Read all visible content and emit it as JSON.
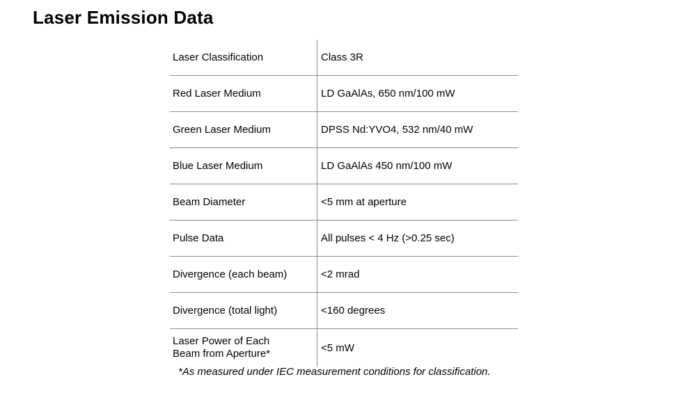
{
  "title": "Laser Emission Data",
  "rows": [
    {
      "label": "Laser Classification",
      "value": "Class 3R"
    },
    {
      "label": "Red Laser Medium",
      "value": "LD GaAlAs, 650 nm/100 mW"
    },
    {
      "label": "Green Laser Medium",
      "value": "DPSS Nd:YVO4, 532 nm/40 mW"
    },
    {
      "label": "Blue Laser Medium",
      "value": "LD GaAlAs 450 nm/100 mW"
    },
    {
      "label": "Beam Diameter",
      "value": "<5 mm at aperture"
    },
    {
      "label": "Pulse Data",
      "value": "All pulses < 4 Hz (>0.25 sec)"
    },
    {
      "label": "Divergence (each beam)",
      "value": "<2 mrad"
    },
    {
      "label": "Divergence (total light)",
      "value": "<160 degrees"
    },
    {
      "label_line1": "Laser Power of Each",
      "label_line2": "Beam from Aperture*",
      "value": "<5 mW"
    }
  ],
  "footnote": "*As measured under IEC measurement conditions for classification."
}
